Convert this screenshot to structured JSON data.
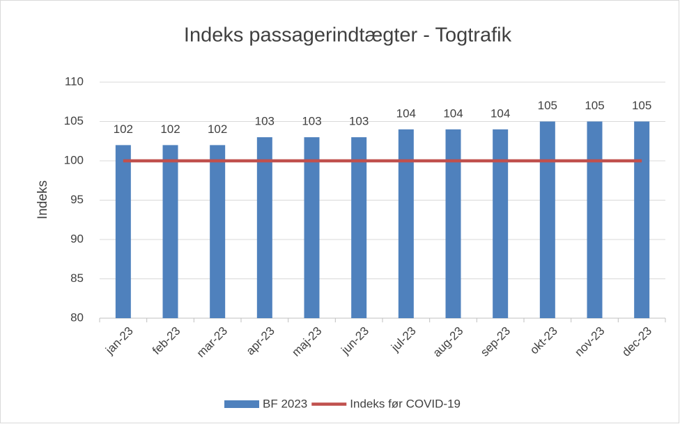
{
  "chart_data": {
    "type": "bar",
    "title": "Indeks passagerindtægter - Togtrafik",
    "y_label": "Indeks",
    "categories": [
      "jan-23",
      "feb-23",
      "mar-23",
      "apr-23",
      "maj-23",
      "jun-23",
      "jul-23",
      "aug-23",
      "sep-23",
      "okt-23",
      "nov-23",
      "dec-23"
    ],
    "series": [
      {
        "name": "BF 2023",
        "type": "bar",
        "color": "#4f81bd",
        "values": [
          102,
          102,
          102,
          103,
          103,
          103,
          104,
          104,
          104,
          105,
          105,
          105
        ]
      },
      {
        "name": "Indeks før COVID-19",
        "type": "line",
        "color": "#c0504d",
        "values": [
          100,
          100,
          100,
          100,
          100,
          100,
          100,
          100,
          100,
          100,
          100,
          100
        ]
      }
    ],
    "ylim": [
      80,
      110
    ],
    "yticks": [
      80,
      85,
      90,
      95,
      100,
      105,
      110
    ],
    "grid": true,
    "legend": "bottom"
  }
}
